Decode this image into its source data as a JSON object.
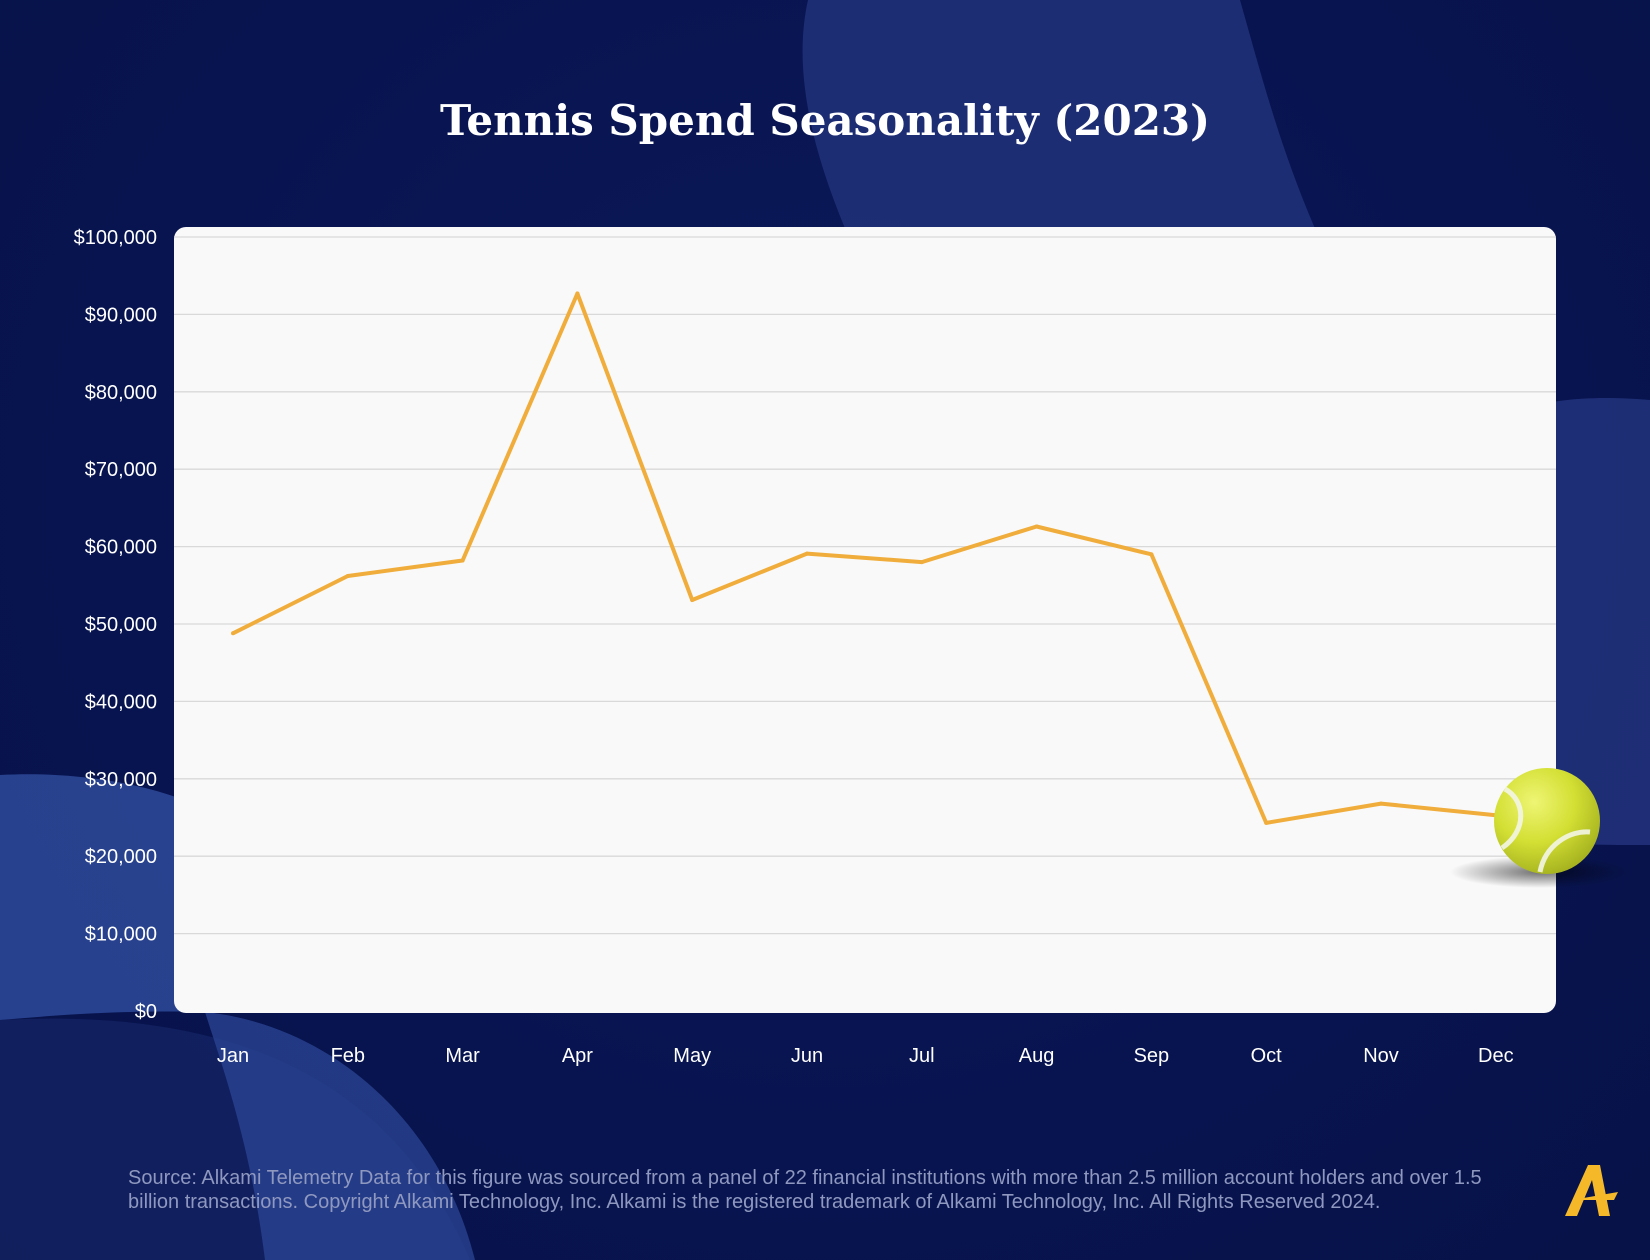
{
  "page": {
    "source_note": "Source:  Alkami Telemetry Data for this figure was sourced from a panel of 22 financial institutions with more than 2.5 million account holders and over 1.5 billion transactions. Copyright Alkami Technology, Inc. Alkami is the registered trademark of Alkami Technology, Inc. All Rights Reserved 2024.",
    "logo_letter": "A",
    "decoration_icon": "tennis-ball-icon"
  },
  "colors": {
    "background": "#071248",
    "plot_area": "#f9f9f9",
    "line": "#f0ad3b",
    "gridline": "#d9d9d9",
    "title": "#ffffff",
    "tick_label": "#ffffff",
    "footer_text": "#8f98bf",
    "logo": "#f5b829",
    "ball": "#d7e23a"
  },
  "chart_data": {
    "type": "line",
    "title": "Tennis Spend Seasonality (2023)",
    "xlabel": "",
    "ylabel": "",
    "categories": [
      "Jan",
      "Feb",
      "Mar",
      "Apr",
      "May",
      "Jun",
      "Jul",
      "Aug",
      "Sep",
      "Oct",
      "Nov",
      "Dec"
    ],
    "series": [
      {
        "values": [
          48800,
          56200,
          58200,
          92700,
          53100,
          59100,
          58000,
          62600,
          59000,
          24300,
          26800,
          25300
        ]
      }
    ],
    "ylim": [
      0,
      100000
    ],
    "yticks": [
      0,
      10000,
      20000,
      30000,
      40000,
      50000,
      60000,
      70000,
      80000,
      90000,
      100000
    ],
    "ytick_labels": [
      "$0",
      "$10,000",
      "$20,000",
      "$30,000",
      "$40,000",
      "$50,000",
      "$60,000",
      "$70,000",
      "$80,000",
      "$90,000",
      "$100,000"
    ],
    "grid": true,
    "legend": "none"
  }
}
